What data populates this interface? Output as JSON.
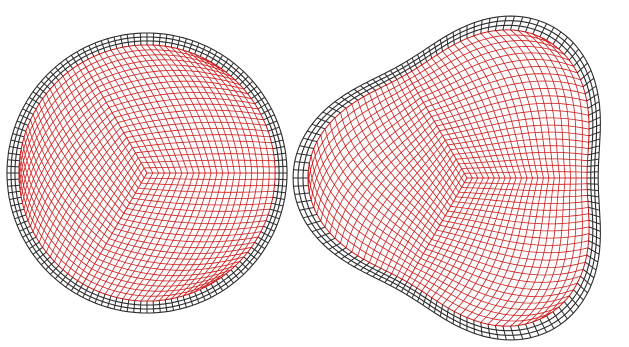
{
  "figure": {
    "colors": {
      "background": "#ffffff",
      "boundary_layer": "#2b2b2b",
      "interior_mesh": "#cc1f1f"
    },
    "panels": [
      {
        "id": "disk",
        "shape": "circle",
        "mesh_style": "three-block structured quad mesh with boundary layer",
        "boundary_layer_rings": 3,
        "interior_rings": 22,
        "blocks": 3
      },
      {
        "id": "trilobe",
        "shape": "rounded triangular blob",
        "mesh_style": "three-block structured quad mesh with boundary layer",
        "boundary_layer_rings": 3,
        "interior_rings": 22,
        "blocks": 3
      }
    ]
  }
}
